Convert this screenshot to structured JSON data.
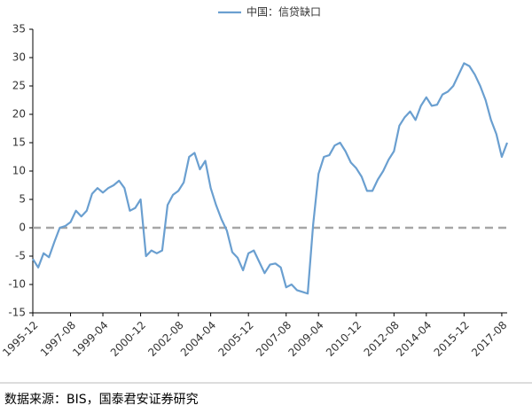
{
  "chart_data": {
    "type": "line",
    "source": "数据来源：BIS，国泰君安证券研究",
    "categories": [
      "1995-12",
      null,
      null,
      null,
      null,
      null,
      null,
      "1997-08",
      null,
      null,
      null,
      null,
      null,
      "1999-04",
      null,
      null,
      null,
      null,
      null,
      null,
      "2000-12",
      null,
      null,
      null,
      null,
      null,
      null,
      "2002-08",
      null,
      null,
      null,
      null,
      null,
      "2004-04",
      null,
      null,
      null,
      null,
      null,
      null,
      "2005-12",
      null,
      null,
      null,
      null,
      null,
      null,
      "2007-08",
      null,
      null,
      null,
      null,
      null,
      "2009-04",
      null,
      null,
      null,
      null,
      null,
      null,
      "2010-12",
      null,
      null,
      null,
      null,
      null,
      null,
      "2012-08",
      null,
      null,
      null,
      null,
      null,
      "2014-04",
      null,
      null,
      null,
      null,
      null,
      null,
      "2015-12",
      null,
      null,
      null,
      null,
      null,
      null,
      "2017-08",
      null
    ],
    "series": [
      {
        "name": "中国：信贷缺口",
        "color": "#6a9fd0",
        "values": [
          -5.5,
          -7,
          -4.5,
          -5.2,
          -2.5,
          0,
          0.3,
          1,
          3,
          2,
          3,
          6,
          7,
          6.2,
          7,
          7.5,
          8.3,
          7,
          3,
          3.5,
          5,
          -5,
          -4,
          -4.5,
          -4,
          4,
          5.8,
          6.5,
          8,
          12.5,
          13.2,
          10.3,
          11.8,
          7,
          4,
          1.5,
          -0.5,
          -4.3,
          -5.3,
          -7.5,
          -4.5,
          -4,
          -6,
          -8,
          -6.5,
          -6.3,
          -7,
          -10.5,
          -10,
          -11,
          -11.3,
          -11.6,
          0.5,
          9.5,
          12.5,
          12.8,
          14.5,
          15,
          13.5,
          11.5,
          10.5,
          9,
          6.5,
          6.5,
          8.5,
          10,
          12,
          13.5,
          18,
          19.5,
          20.5,
          19,
          21.5,
          23,
          21.5,
          21.7,
          23.5,
          24,
          25,
          27,
          29,
          28.5,
          27,
          25,
          22.5,
          19,
          16.5,
          12.5,
          15
        ]
      }
    ],
    "ylim": [
      -15,
      35
    ],
    "yticks": [
      -15,
      -10,
      -5,
      0,
      5,
      10,
      15,
      20,
      25,
      30,
      35
    ],
    "reference_line": {
      "value": 0,
      "color": "#a6a6a6"
    },
    "legend": "top"
  }
}
